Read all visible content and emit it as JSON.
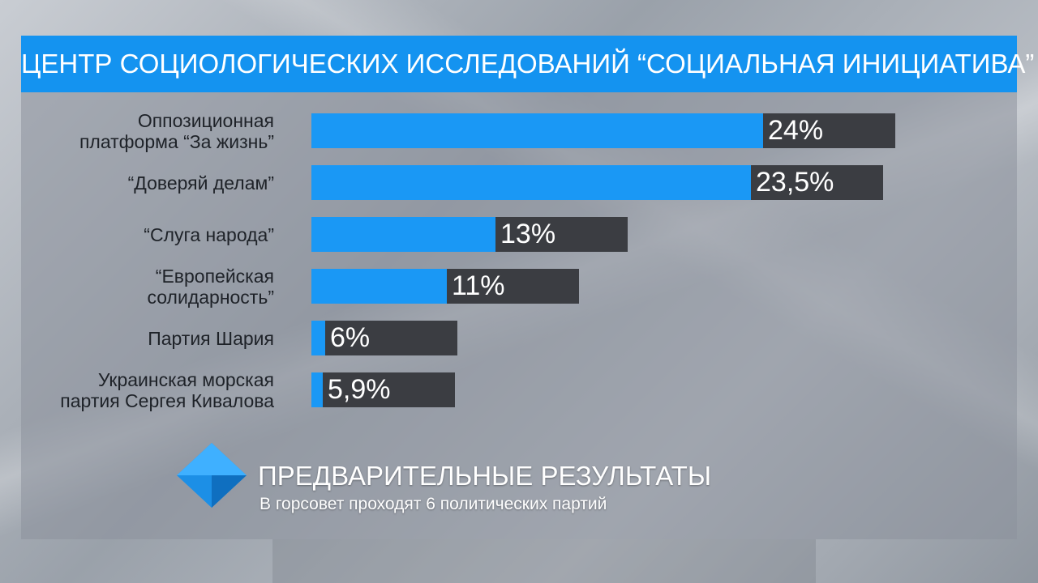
{
  "header": {
    "title": "ЦЕНТР СОЦИОЛОГИЧЕСКИХ ИССЛЕДОВАНИЙ “СОЦИАЛЬНАЯ ИНИЦИАТИВА”"
  },
  "footer": {
    "title": "ПРЕДВАРИТЕЛЬНЫЕ РЕЗУЛЬТАТЫ",
    "subtitle": "В горсовет проходят 6 политических партий"
  },
  "colors": {
    "accent": "#1a98f5",
    "header_bg": "#1493f0",
    "bar_dark": "#3b3d42"
  },
  "chart_data": {
    "type": "bar",
    "orientation": "horizontal",
    "categories": [
      [
        "Оппозиционная",
        "платформа “За жизнь”"
      ],
      [
        "“Доверяй делам”"
      ],
      [
        "“Слуга народа”"
      ],
      [
        "“Европейская",
        "солидарность”"
      ],
      [
        "Партия Шария"
      ],
      [
        "Украинская морская",
        "партия Сергея Кивалова"
      ]
    ],
    "values": [
      24,
      23.5,
      13,
      11,
      6,
      5.9
    ],
    "value_labels": [
      "24%",
      "23,5%",
      "13%",
      "11%",
      "6%",
      "5,9%"
    ],
    "xlim": [
      0,
      30
    ],
    "grid": false,
    "legend": "none"
  }
}
